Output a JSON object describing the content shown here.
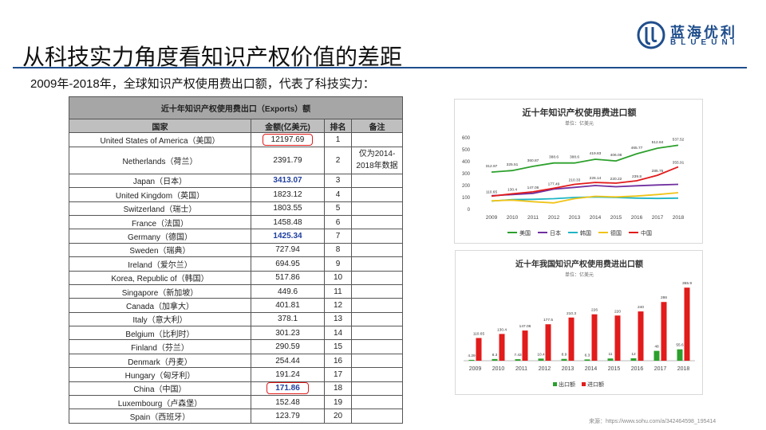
{
  "slide": {
    "title": "从科技实力角度看知识产权价值的差距",
    "subtitle": "2009年-2018年，全球知识产权使用费出口额，代表了科技实力：",
    "source": "来源：https://www.sohu.com/a/342464598_195414"
  },
  "logo": {
    "name": "蓝海优利",
    "tagline": "BLUEUNI",
    "icon": "blueuni-logo-icon"
  },
  "colors": {
    "brand": "#1f4e8c",
    "highlight": "#e21b1b",
    "us": "#2ca02c",
    "jp": "#7030a0",
    "kr": "#1fb5c4",
    "de": "#f0c419",
    "cn": "#e21b1b"
  },
  "table": {
    "title": "近十年知识产权使用费出口（Exports）额",
    "headers": [
      "国家",
      "金额(亿美元)",
      "排名",
      "备注"
    ],
    "note": "仅为2014-2018年数据",
    "rows": [
      {
        "country": "United States of America（美国）",
        "amount": "12197.69",
        "rank": "1"
      },
      {
        "country": "Netherlands（荷兰）",
        "amount": "2391.79",
        "rank": "2"
      },
      {
        "country": "Japan（日本）",
        "amount": "3413.07",
        "rank": "3"
      },
      {
        "country": "United Kingdom（英国）",
        "amount": "1823.12",
        "rank": "4"
      },
      {
        "country": "Switzerland（瑞士）",
        "amount": "1803.55",
        "rank": "5"
      },
      {
        "country": "France（法国）",
        "amount": "1458.48",
        "rank": "6"
      },
      {
        "country": "Germany（德国）",
        "amount": "1425.34",
        "rank": "7"
      },
      {
        "country": "Sweden（瑞典）",
        "amount": "727.94",
        "rank": "8"
      },
      {
        "country": "Ireland（爱尔兰）",
        "amount": "694.95",
        "rank": "9"
      },
      {
        "country": "Korea, Republic of（韩国）",
        "amount": "517.86",
        "rank": "10"
      },
      {
        "country": "Singapore（新加坡）",
        "amount": "449.6",
        "rank": "11"
      },
      {
        "country": "Canada（加拿大）",
        "amount": "401.81",
        "rank": "12"
      },
      {
        "country": "Italy（意大利）",
        "amount": "378.1",
        "rank": "13"
      },
      {
        "country": "Belgium（比利时）",
        "amount": "301.23",
        "rank": "14"
      },
      {
        "country": "Finland（芬兰）",
        "amount": "290.59",
        "rank": "15"
      },
      {
        "country": "Denmark（丹麦）",
        "amount": "254.44",
        "rank": "16"
      },
      {
        "country": "Hungary（匈牙利）",
        "amount": "191.24",
        "rank": "17"
      },
      {
        "country": "China（中国）",
        "amount": "171.86",
        "rank": "18"
      },
      {
        "country": "Luxembourg（卢森堡）",
        "amount": "152.48",
        "rank": "19"
      },
      {
        "country": "Spain（西班牙）",
        "amount": "123.79",
        "rank": "20"
      }
    ]
  },
  "chart_data": [
    {
      "type": "line",
      "title": "近十年知识产权使用费进口额",
      "subtitle": "单位：亿美元",
      "x": [
        "2009",
        "2010",
        "2011",
        "2012",
        "2013",
        "2014",
        "2015",
        "2016",
        "2017",
        "2018"
      ],
      "ylim": [
        0,
        600
      ],
      "yticks": [
        "0",
        "100",
        "200",
        "300",
        "400",
        "500",
        "600"
      ],
      "legend_position": "bottom",
      "series": [
        {
          "name": "美国",
          "color": "#2ca02c",
          "values": [
            312.97,
            325.51,
            360.87,
            388.6,
            388.6,
            419.83,
            406.08,
            465.77,
            512.84,
            537.52
          ],
          "labels": [
            "312.97",
            "325.51",
            "360.87",
            "388.6",
            "388.6",
            "419.83",
            "406.08",
            "465.77",
            "512.84",
            "537.52"
          ]
        },
        {
          "name": "日本",
          "color": "#7030a0",
          "values": [
            115,
            125,
            135,
            170,
            185,
            200,
            190,
            198,
            205,
            210
          ],
          "labels": []
        },
        {
          "name": "韩国",
          "color": "#1fb5c4",
          "values": [
            70,
            82,
            85,
            90,
            100,
            105,
            100,
            95,
            92,
            95
          ],
          "labels": []
        },
        {
          "name": "德国",
          "color": "#f0c419",
          "values": [
            72,
            78,
            65,
            55,
            90,
            110,
            105,
            112,
            125,
            140
          ],
          "labels": []
        },
        {
          "name": "中国",
          "color": "#e21b1b",
          "values": [
            110.65,
            130.4,
            147.06,
            177.5,
            210.3,
            226,
            220,
            240,
            286,
            355.9
          ],
          "labels": [
            "110.65",
            "130.4",
            "147.06",
            "177.49",
            "210.33",
            "226.14",
            "220.22",
            "239.8",
            "285.75",
            "355.91"
          ]
        }
      ]
    },
    {
      "type": "bar",
      "title": "近十年我国知识产权使用费进出口额",
      "subtitle": "单位：亿美元",
      "categories": [
        "2009",
        "2010",
        "2011",
        "2012",
        "2013",
        "2014",
        "2015",
        "2016",
        "2017",
        "2018"
      ],
      "ylim": [
        0,
        380
      ],
      "legend_position": "bottom",
      "series": [
        {
          "name": "出口额",
          "color": "#2ca02c",
          "values": [
            4.29,
            8.3,
            7.43,
            10.4,
            8.9,
            6.3,
            11,
            12,
            48,
            55.6
          ],
          "labels": [
            "4.29",
            "8.3",
            "7.43",
            "10.4",
            "8.9",
            "6.3",
            "11",
            "12",
            "48",
            "55.6"
          ]
        },
        {
          "name": "进口额",
          "color": "#e21b1b",
          "values": [
            110.65,
            130.4,
            147.06,
            177.5,
            210.3,
            226,
            220,
            240,
            286,
            355.9
          ],
          "labels": [
            "110.65",
            "130.4",
            "147.06",
            "177.5",
            "210.3",
            "226",
            "220",
            "240",
            "286",
            "355.9"
          ]
        }
      ]
    }
  ]
}
